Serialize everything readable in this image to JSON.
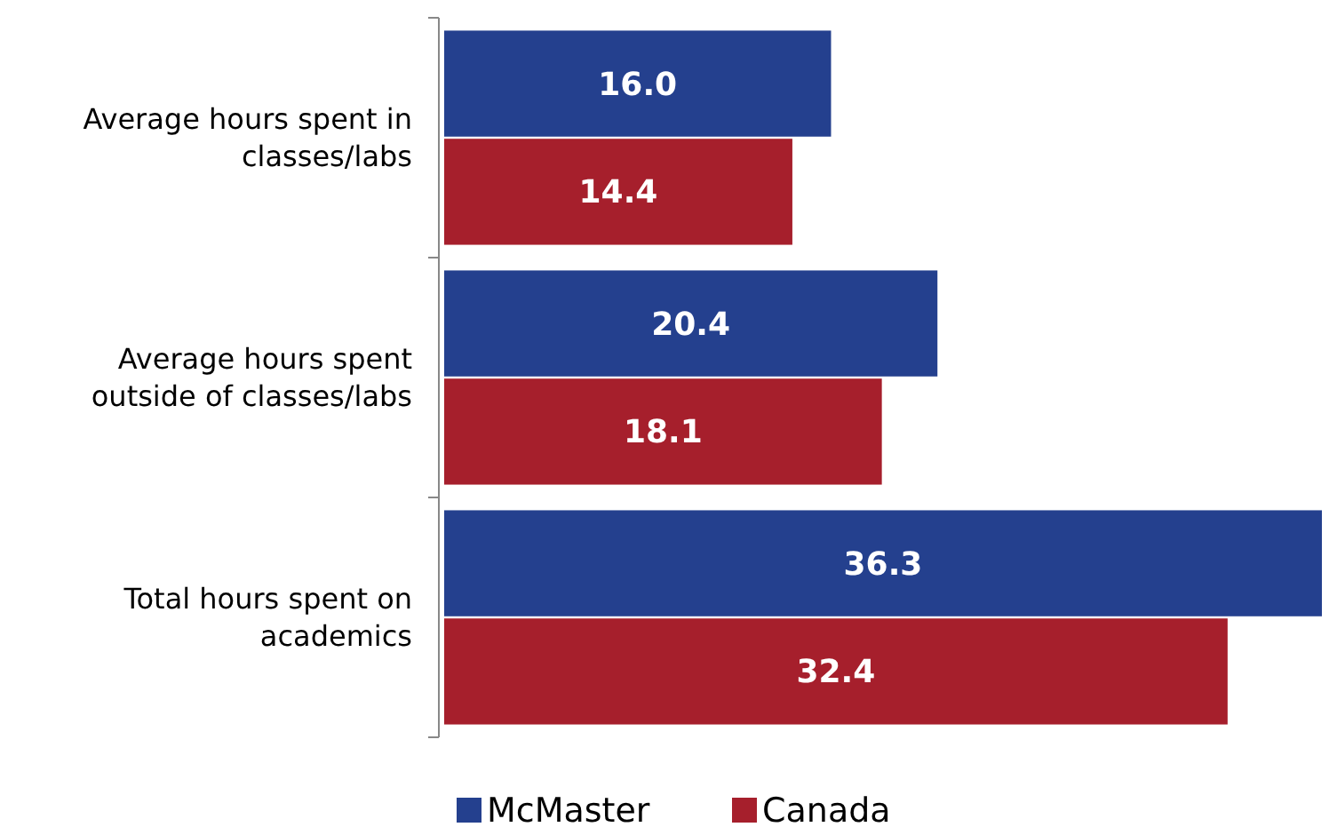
{
  "chart_data": {
    "type": "bar",
    "orientation": "horizontal",
    "categories": [
      "Average hours spent in classes/labs",
      "Average hours spent outside of classes/labs",
      "Total hours spent on academics"
    ],
    "series": [
      {
        "name": "McMaster",
        "color": "#24408e",
        "values": [
          16.0,
          20.4,
          36.3
        ],
        "value_labels": [
          "16.0",
          "20.4",
          "36.3"
        ]
      },
      {
        "name": "Canada",
        "color": "#a61f2c",
        "values": [
          14.4,
          18.1,
          32.4
        ],
        "value_labels": [
          "14.4",
          "18.1",
          "32.4"
        ]
      }
    ],
    "legend": "bottom"
  }
}
